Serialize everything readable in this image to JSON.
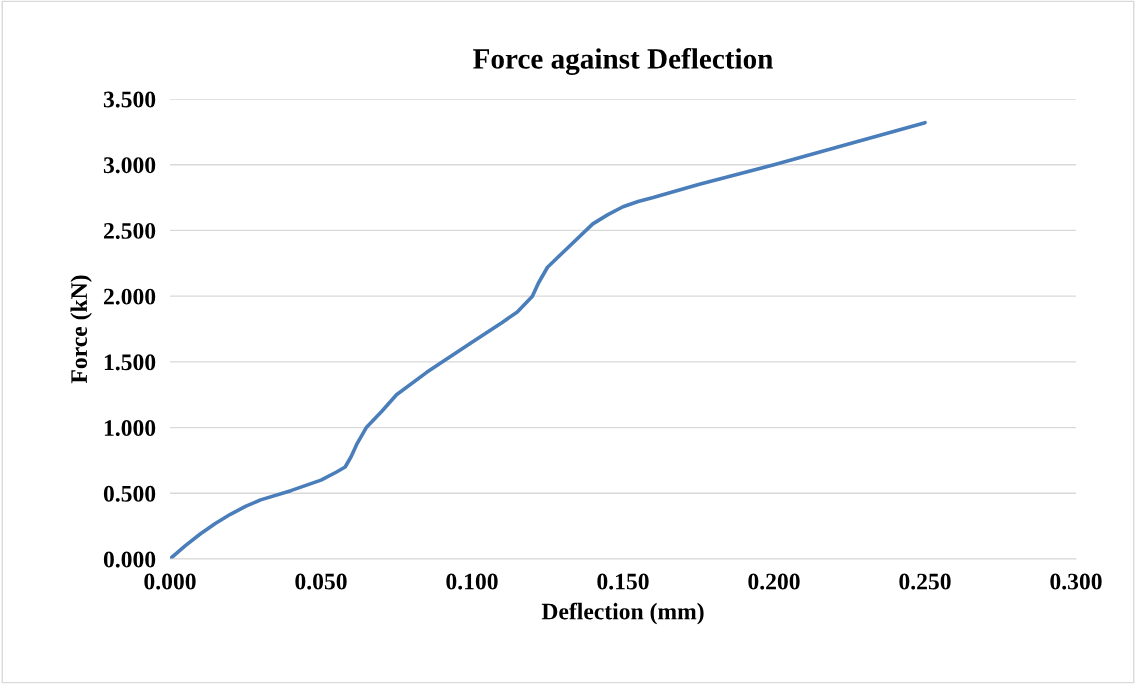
{
  "chart_data": {
    "type": "line",
    "title": "Force against Deflection",
    "xlabel": "Deflection (mm)",
    "ylabel": "Force (kN)",
    "xlim": [
      0,
      0.3
    ],
    "ylim": [
      0,
      3.5
    ],
    "xticks": [
      {
        "value": 0,
        "label": "0.000"
      },
      {
        "value": 0.05,
        "label": "0.050"
      },
      {
        "value": 0.1,
        "label": "0.100"
      },
      {
        "value": 0.15,
        "label": "0.150"
      },
      {
        "value": 0.2,
        "label": "0.200"
      },
      {
        "value": 0.25,
        "label": "0.250"
      },
      {
        "value": 0.3,
        "label": "0.300"
      }
    ],
    "yticks": [
      {
        "value": 0,
        "label": "0.000"
      },
      {
        "value": 0.5,
        "label": "0.500"
      },
      {
        "value": 1,
        "label": "1.000"
      },
      {
        "value": 1.5,
        "label": "1.500"
      },
      {
        "value": 2,
        "label": "2.000"
      },
      {
        "value": 2.5,
        "label": "2.500"
      },
      {
        "value": 3,
        "label": "3.000"
      },
      {
        "value": 3.5,
        "label": "3.500"
      }
    ],
    "grid": "y",
    "legend": false,
    "marker": "none",
    "line_style": "solid",
    "series": [
      {
        "color": "#4a7ebb",
        "x": [
          0,
          0.005,
          0.01,
          0.015,
          0.02,
          0.025,
          0.03,
          0.04,
          0.05,
          0.055,
          0.058,
          0.06,
          0.062,
          0.065,
          0.07,
          0.075,
          0.085,
          0.1,
          0.11,
          0.115,
          0.12,
          0.122,
          0.125,
          0.13,
          0.14,
          0.145,
          0.15,
          0.155,
          0.16,
          0.175,
          0.2,
          0.225,
          0.25
        ],
        "values": [
          0,
          0.1,
          0.19,
          0.27,
          0.34,
          0.4,
          0.45,
          0.52,
          0.6,
          0.66,
          0.7,
          0.78,
          0.88,
          1.0,
          1.12,
          1.25,
          1.42,
          1.65,
          1.8,
          1.88,
          2.0,
          2.1,
          2.22,
          2.33,
          2.55,
          2.62,
          2.68,
          2.72,
          2.75,
          2.85,
          3.0,
          3.16,
          3.32
        ]
      }
    ]
  }
}
